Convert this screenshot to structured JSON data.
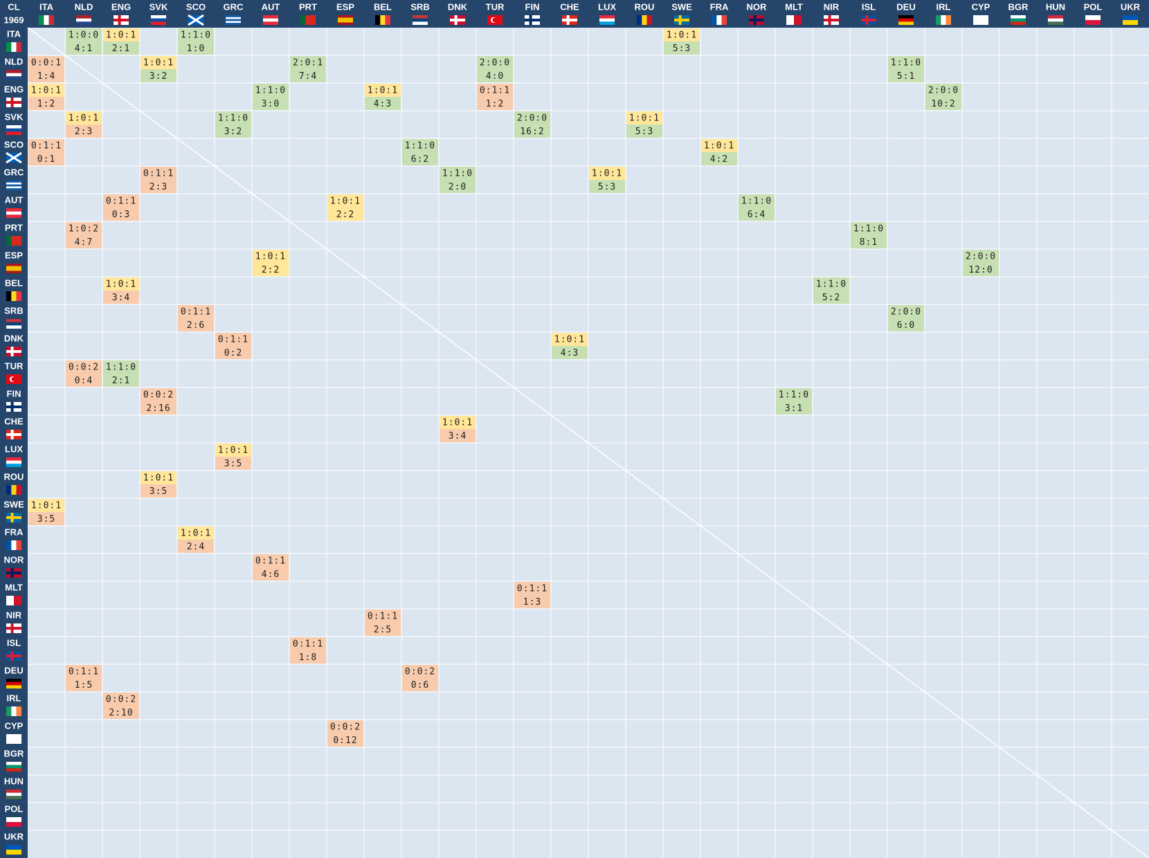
{
  "corner": {
    "title": "CL",
    "year": "1969"
  },
  "teams": [
    "ITA",
    "NLD",
    "ENG",
    "SVK",
    "SCO",
    "GRC",
    "AUT",
    "PRT",
    "ESP",
    "BEL",
    "SRB",
    "DNK",
    "TUR",
    "FIN",
    "CHE",
    "LUX",
    "ROU",
    "SWE",
    "FRA",
    "NOR",
    "MLT",
    "NIR",
    "ISL",
    "DEU",
    "IRL",
    "CYP",
    "BGR",
    "HUN",
    "POL",
    "UKR"
  ],
  "table": {
    "rows": [
      {
        "team": "ITA",
        "cells": {
          "NLD": {
            "record": "1:0:0",
            "score": "4:1",
            "record_color": "#c6e0b4",
            "score_color": "#c6e0b4"
          },
          "ENG": {
            "record": "1:0:1",
            "score": "2:1",
            "record_color": "#ffe699",
            "score_color": "#c6e0b4"
          },
          "SCO": {
            "record": "1:1:0",
            "score": "1:0",
            "record_color": "#c6e0b4",
            "score_color": "#c6e0b4"
          },
          "SWE": {
            "record": "1:0:1",
            "score": "5:3",
            "record_color": "#ffe699",
            "score_color": "#c6e0b4"
          }
        }
      },
      {
        "team": "NLD",
        "cells": {
          "ITA": {
            "record": "0:0:1",
            "score": "1:4",
            "record_color": "#f8cbad",
            "score_color": "#f8cbad"
          },
          "SVK": {
            "record": "1:0:1",
            "score": "3:2",
            "record_color": "#ffe699",
            "score_color": "#c6e0b4"
          },
          "PRT": {
            "record": "2:0:1",
            "score": "7:4",
            "record_color": "#c6e0b4",
            "score_color": "#c6e0b4"
          },
          "TUR": {
            "record": "2:0:0",
            "score": "4:0",
            "record_color": "#c6e0b4",
            "score_color": "#c6e0b4"
          },
          "DEU": {
            "record": "1:1:0",
            "score": "5:1",
            "record_color": "#c6e0b4",
            "score_color": "#c6e0b4"
          }
        }
      },
      {
        "team": "ENG",
        "cells": {
          "ITA": {
            "record": "1:0:1",
            "score": "1:2",
            "record_color": "#ffe699",
            "score_color": "#f8cbad"
          },
          "AUT": {
            "record": "1:1:0",
            "score": "3:0",
            "record_color": "#c6e0b4",
            "score_color": "#c6e0b4"
          },
          "BEL": {
            "record": "1:0:1",
            "score": "4:3",
            "record_color": "#ffe699",
            "score_color": "#c6e0b4"
          },
          "TUR": {
            "record": "0:1:1",
            "score": "1:2",
            "record_color": "#f8cbad",
            "score_color": "#f8cbad"
          },
          "IRL": {
            "record": "2:0:0",
            "score": "10:2",
            "record_color": "#c6e0b4",
            "score_color": "#c6e0b4"
          }
        }
      },
      {
        "team": "SVK",
        "cells": {
          "NLD": {
            "record": "1:0:1",
            "score": "2:3",
            "record_color": "#ffe699",
            "score_color": "#f8cbad"
          },
          "GRC": {
            "record": "1:1:0",
            "score": "3:2",
            "record_color": "#c6e0b4",
            "score_color": "#c6e0b4"
          },
          "FIN": {
            "record": "2:0:0",
            "score": "16:2",
            "record_color": "#c6e0b4",
            "score_color": "#c6e0b4"
          },
          "ROU": {
            "record": "1:0:1",
            "score": "5:3",
            "record_color": "#ffe699",
            "score_color": "#c6e0b4"
          }
        }
      },
      {
        "team": "SCO",
        "cells": {
          "ITA": {
            "record": "0:1:1",
            "score": "0:1",
            "record_color": "#f8cbad",
            "score_color": "#f8cbad"
          },
          "SRB": {
            "record": "1:1:0",
            "score": "6:2",
            "record_color": "#c6e0b4",
            "score_color": "#c6e0b4"
          },
          "FRA": {
            "record": "1:0:1",
            "score": "4:2",
            "record_color": "#ffe699",
            "score_color": "#c6e0b4"
          }
        }
      },
      {
        "team": "GRC",
        "cells": {
          "SVK": {
            "record": "0:1:1",
            "score": "2:3",
            "record_color": "#f8cbad",
            "score_color": "#f8cbad"
          },
          "DNK": {
            "record": "1:1:0",
            "score": "2:0",
            "record_color": "#c6e0b4",
            "score_color": "#c6e0b4"
          },
          "LUX": {
            "record": "1:0:1",
            "score": "5:3",
            "record_color": "#ffe699",
            "score_color": "#c6e0b4"
          }
        }
      },
      {
        "team": "AUT",
        "cells": {
          "ENG": {
            "record": "0:1:1",
            "score": "0:3",
            "record_color": "#f8cbad",
            "score_color": "#f8cbad"
          },
          "ESP": {
            "record": "1:0:1",
            "score": "2:2",
            "record_color": "#ffe699",
            "score_color": "#ffe699"
          },
          "NOR": {
            "record": "1:1:0",
            "score": "6:4",
            "record_color": "#c6e0b4",
            "score_color": "#c6e0b4"
          }
        }
      },
      {
        "team": "PRT",
        "cells": {
          "NLD": {
            "record": "1:0:2",
            "score": "4:7",
            "record_color": "#f8cbad",
            "score_color": "#f8cbad"
          },
          "ISL": {
            "record": "1:1:0",
            "score": "8:1",
            "record_color": "#c6e0b4",
            "score_color": "#c6e0b4"
          }
        }
      },
      {
        "team": "ESP",
        "cells": {
          "AUT": {
            "record": "1:0:1",
            "score": "2:2",
            "record_color": "#ffe699",
            "score_color": "#ffe699"
          },
          "CYP": {
            "record": "2:0:0",
            "score": "12:0",
            "record_color": "#c6e0b4",
            "score_color": "#c6e0b4"
          }
        }
      },
      {
        "team": "BEL",
        "cells": {
          "ENG": {
            "record": "1:0:1",
            "score": "3:4",
            "record_color": "#ffe699",
            "score_color": "#f8cbad"
          },
          "NIR": {
            "record": "1:1:0",
            "score": "5:2",
            "record_color": "#c6e0b4",
            "score_color": "#c6e0b4"
          }
        }
      },
      {
        "team": "SRB",
        "cells": {
          "SCO": {
            "record": "0:1:1",
            "score": "2:6",
            "record_color": "#f8cbad",
            "score_color": "#f8cbad"
          },
          "DEU": {
            "record": "2:0:0",
            "score": "6:0",
            "record_color": "#c6e0b4",
            "score_color": "#c6e0b4"
          }
        }
      },
      {
        "team": "DNK",
        "cells": {
          "GRC": {
            "record": "0:1:1",
            "score": "0:2",
            "record_color": "#f8cbad",
            "score_color": "#f8cbad"
          },
          "CHE": {
            "record": "1:0:1",
            "score": "4:3",
            "record_color": "#ffe699",
            "score_color": "#c6e0b4"
          }
        }
      },
      {
        "team": "TUR",
        "cells": {
          "NLD": {
            "record": "0:0:2",
            "score": "0:4",
            "record_color": "#f8cbad",
            "score_color": "#f8cbad"
          },
          "ENG": {
            "record": "1:1:0",
            "score": "2:1",
            "record_color": "#c6e0b4",
            "score_color": "#c6e0b4"
          }
        }
      },
      {
        "team": "FIN",
        "cells": {
          "SVK": {
            "record": "0:0:2",
            "score": "2:16",
            "record_color": "#f8cbad",
            "score_color": "#f8cbad"
          },
          "MLT": {
            "record": "1:1:0",
            "score": "3:1",
            "record_color": "#c6e0b4",
            "score_color": "#c6e0b4"
          }
        }
      },
      {
        "team": "CHE",
        "cells": {
          "DNK": {
            "record": "1:0:1",
            "score": "3:4",
            "record_color": "#ffe699",
            "score_color": "#f8cbad"
          }
        }
      },
      {
        "team": "LUX",
        "cells": {
          "GRC": {
            "record": "1:0:1",
            "score": "3:5",
            "record_color": "#ffe699",
            "score_color": "#f8cbad"
          }
        }
      },
      {
        "team": "ROU",
        "cells": {
          "SVK": {
            "record": "1:0:1",
            "score": "3:5",
            "record_color": "#ffe699",
            "score_color": "#f8cbad"
          }
        }
      },
      {
        "team": "SWE",
        "cells": {
          "ITA": {
            "record": "1:0:1",
            "score": "3:5",
            "record_color": "#ffe699",
            "score_color": "#f8cbad"
          }
        }
      },
      {
        "team": "FRA",
        "cells": {
          "SCO": {
            "record": "1:0:1",
            "score": "2:4",
            "record_color": "#ffe699",
            "score_color": "#f8cbad"
          }
        }
      },
      {
        "team": "NOR",
        "cells": {
          "AUT": {
            "record": "0:1:1",
            "score": "4:6",
            "record_color": "#f8cbad",
            "score_color": "#f8cbad"
          }
        }
      },
      {
        "team": "MLT",
        "cells": {
          "FIN": {
            "record": "0:1:1",
            "score": "1:3",
            "record_color": "#f8cbad",
            "score_color": "#f8cbad"
          }
        }
      },
      {
        "team": "NIR",
        "cells": {
          "BEL": {
            "record": "0:1:1",
            "score": "2:5",
            "record_color": "#f8cbad",
            "score_color": "#f8cbad"
          }
        }
      },
      {
        "team": "ISL",
        "cells": {
          "PRT": {
            "record": "0:1:1",
            "score": "1:8",
            "record_color": "#f8cbad",
            "score_color": "#f8cbad"
          }
        }
      },
      {
        "team": "DEU",
        "cells": {
          "NLD": {
            "record": "0:1:1",
            "score": "1:5",
            "record_color": "#f8cbad",
            "score_color": "#f8cbad"
          },
          "SRB": {
            "record": "0:0:2",
            "score": "0:6",
            "record_color": "#f8cbad",
            "score_color": "#f8cbad"
          }
        }
      },
      {
        "team": "IRL",
        "cells": {
          "ENG": {
            "record": "0:0:2",
            "score": "2:10",
            "record_color": "#f8cbad",
            "score_color": "#f8cbad"
          }
        }
      },
      {
        "team": "CYP",
        "cells": {
          "ESP": {
            "record": "0:0:2",
            "score": "0:12",
            "record_color": "#f8cbad",
            "score_color": "#f8cbad"
          }
        }
      },
      {
        "team": "BGR",
        "cells": {}
      },
      {
        "team": "HUN",
        "cells": {}
      },
      {
        "team": "POL",
        "cells": {}
      },
      {
        "team": "UKR",
        "cells": {}
      }
    ]
  }
}
